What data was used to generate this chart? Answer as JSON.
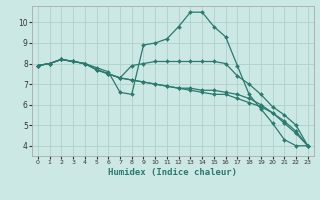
{
  "bg_color": "#cce8e4",
  "grid_color": "#b0d0cc",
  "line_color": "#2a7a6e",
  "xlabel": "Humidex (Indice chaleur)",
  "xlim": [
    -0.5,
    23.5
  ],
  "ylim": [
    3.5,
    10.8
  ],
  "yticks": [
    4,
    5,
    6,
    7,
    8,
    9,
    10
  ],
  "xticks": [
    0,
    1,
    2,
    3,
    4,
    5,
    6,
    7,
    8,
    9,
    10,
    11,
    12,
    13,
    14,
    15,
    16,
    17,
    18,
    19,
    20,
    21,
    22,
    23
  ],
  "series": [
    {
      "x": [
        0,
        1,
        2,
        3,
        4,
        5,
        6,
        7,
        8,
        9,
        10,
        11,
        12,
        13,
        14,
        15,
        16,
        17,
        18,
        19,
        20,
        21,
        22,
        23
      ],
      "y": [
        7.9,
        8.0,
        8.2,
        8.1,
        8.0,
        7.8,
        7.6,
        6.6,
        6.5,
        8.9,
        9.0,
        9.2,
        9.8,
        10.5,
        10.5,
        9.8,
        9.3,
        7.9,
        6.5,
        5.8,
        5.1,
        4.3,
        4.0,
        4.0
      ]
    },
    {
      "x": [
        0,
        1,
        2,
        3,
        4,
        5,
        6,
        7,
        8,
        9,
        10,
        11,
        12,
        13,
        14,
        15,
        16,
        17,
        18,
        19,
        20,
        21,
        22,
        23
      ],
      "y": [
        7.9,
        8.0,
        8.2,
        8.1,
        8.0,
        7.7,
        7.5,
        7.3,
        7.9,
        8.0,
        8.1,
        8.1,
        8.1,
        8.1,
        8.1,
        8.1,
        8.0,
        7.4,
        7.0,
        6.5,
        5.9,
        5.5,
        5.0,
        4.0
      ]
    },
    {
      "x": [
        0,
        1,
        2,
        3,
        4,
        5,
        6,
        7,
        8,
        9,
        10,
        11,
        12,
        13,
        14,
        15,
        16,
        17,
        18,
        19,
        20,
        21,
        22,
        23
      ],
      "y": [
        7.9,
        8.0,
        8.2,
        8.1,
        8.0,
        7.7,
        7.5,
        7.3,
        7.2,
        7.1,
        7.0,
        6.9,
        6.8,
        6.8,
        6.7,
        6.7,
        6.6,
        6.5,
        6.3,
        6.0,
        5.6,
        5.2,
        4.7,
        4.0
      ]
    },
    {
      "x": [
        0,
        1,
        2,
        3,
        4,
        5,
        6,
        7,
        8,
        9,
        10,
        11,
        12,
        13,
        14,
        15,
        16,
        17,
        18,
        19,
        20,
        21,
        22,
        23
      ],
      "y": [
        7.9,
        8.0,
        8.2,
        8.1,
        8.0,
        7.7,
        7.5,
        7.3,
        7.2,
        7.1,
        7.0,
        6.9,
        6.8,
        6.7,
        6.6,
        6.5,
        6.5,
        6.3,
        6.1,
        5.9,
        5.6,
        5.1,
        4.6,
        4.0
      ]
    }
  ]
}
